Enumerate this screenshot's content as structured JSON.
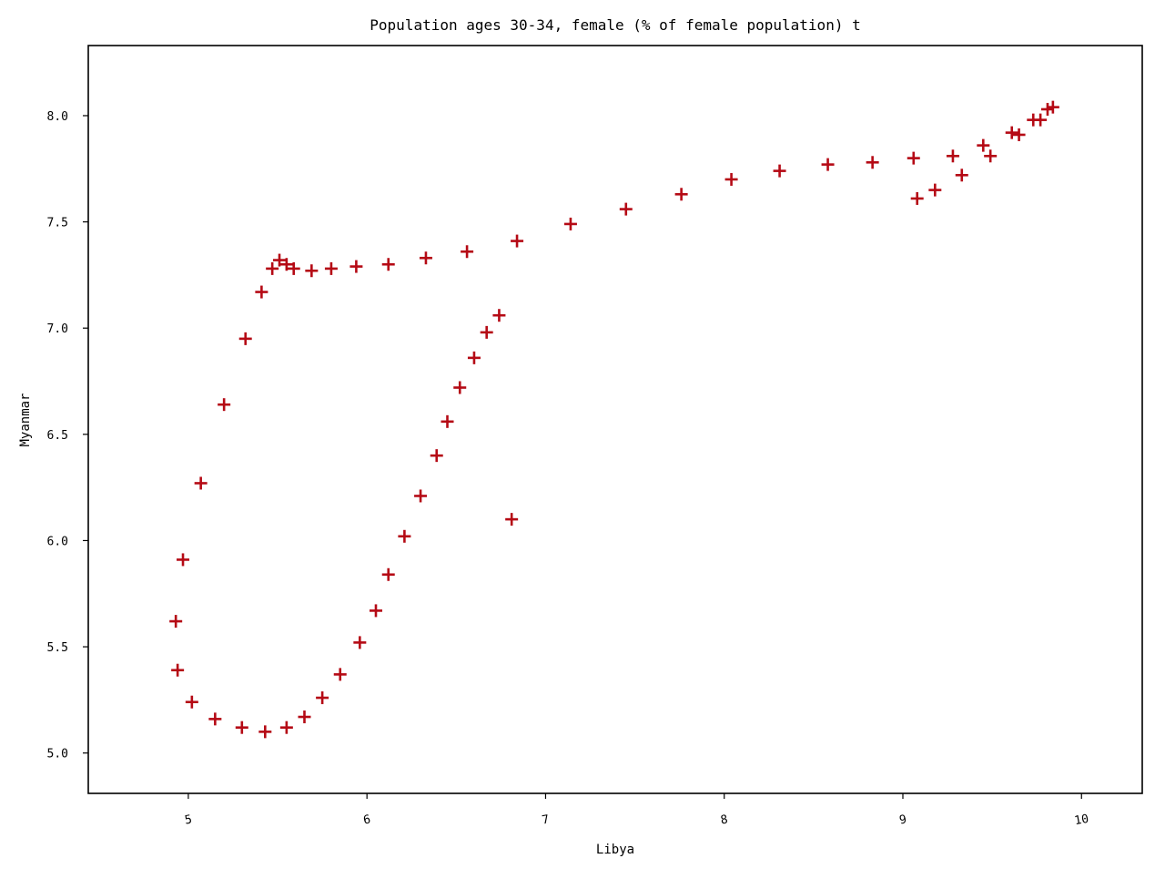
{
  "chart_data": {
    "type": "scatter",
    "title": "Population ages 30-34, female (% of female population) t",
    "xlabel": "Libya",
    "ylabel": "Myanmar",
    "xlim": [
      4.44,
      10.34
    ],
    "ylim": [
      4.81,
      8.33
    ],
    "xticks": [
      5,
      6,
      7,
      8,
      9,
      10
    ],
    "xtick_labels": [
      "5",
      "6",
      "7",
      "8",
      "9",
      "10"
    ],
    "yticks": [
      5.0,
      5.5,
      6.0,
      6.5,
      7.0,
      7.5,
      8.0
    ],
    "ytick_labels": [
      "5.0",
      "5.5",
      "6.0",
      "6.5",
      "7.0",
      "7.5",
      "8.0"
    ],
    "grid": false,
    "marker": "plus",
    "color": "#b50a15",
    "points": [
      {
        "x": 4.93,
        "y": 5.62
      },
      {
        "x": 4.94,
        "y": 5.39
      },
      {
        "x": 4.97,
        "y": 5.91
      },
      {
        "x": 5.02,
        "y": 5.24
      },
      {
        "x": 5.07,
        "y": 6.27
      },
      {
        "x": 5.15,
        "y": 5.16
      },
      {
        "x": 5.2,
        "y": 6.64
      },
      {
        "x": 5.3,
        "y": 5.12
      },
      {
        "x": 5.32,
        "y": 6.95
      },
      {
        "x": 5.41,
        "y": 7.17
      },
      {
        "x": 5.43,
        "y": 5.1
      },
      {
        "x": 5.47,
        "y": 7.28
      },
      {
        "x": 5.51,
        "y": 7.32
      },
      {
        "x": 5.55,
        "y": 5.12
      },
      {
        "x": 5.55,
        "y": 7.3
      },
      {
        "x": 5.59,
        "y": 7.28
      },
      {
        "x": 5.65,
        "y": 5.17
      },
      {
        "x": 5.69,
        "y": 7.27
      },
      {
        "x": 5.75,
        "y": 5.26
      },
      {
        "x": 5.8,
        "y": 7.28
      },
      {
        "x": 5.85,
        "y": 5.37
      },
      {
        "x": 5.94,
        "y": 7.29
      },
      {
        "x": 5.96,
        "y": 5.52
      },
      {
        "x": 6.05,
        "y": 5.67
      },
      {
        "x": 6.12,
        "y": 5.84
      },
      {
        "x": 6.12,
        "y": 7.3
      },
      {
        "x": 6.21,
        "y": 6.02
      },
      {
        "x": 6.3,
        "y": 6.21
      },
      {
        "x": 6.33,
        "y": 7.33
      },
      {
        "x": 6.39,
        "y": 6.4
      },
      {
        "x": 6.45,
        "y": 6.56
      },
      {
        "x": 6.52,
        "y": 6.72
      },
      {
        "x": 6.56,
        "y": 7.36
      },
      {
        "x": 6.6,
        "y": 6.86
      },
      {
        "x": 6.67,
        "y": 6.98
      },
      {
        "x": 6.74,
        "y": 7.06
      },
      {
        "x": 6.81,
        "y": 6.1
      },
      {
        "x": 6.84,
        "y": 7.41
      },
      {
        "x": 7.14,
        "y": 7.49
      },
      {
        "x": 7.45,
        "y": 7.56
      },
      {
        "x": 7.76,
        "y": 7.63
      },
      {
        "x": 8.04,
        "y": 7.7
      },
      {
        "x": 8.31,
        "y": 7.74
      },
      {
        "x": 8.58,
        "y": 7.77
      },
      {
        "x": 8.83,
        "y": 7.78
      },
      {
        "x": 9.06,
        "y": 7.8
      },
      {
        "x": 9.08,
        "y": 7.61
      },
      {
        "x": 9.18,
        "y": 7.65
      },
      {
        "x": 9.28,
        "y": 7.81
      },
      {
        "x": 9.33,
        "y": 7.72
      },
      {
        "x": 9.45,
        "y": 7.86
      },
      {
        "x": 9.49,
        "y": 7.81
      },
      {
        "x": 9.61,
        "y": 7.92
      },
      {
        "x": 9.65,
        "y": 7.91
      },
      {
        "x": 9.73,
        "y": 7.98
      },
      {
        "x": 9.77,
        "y": 7.98
      },
      {
        "x": 9.81,
        "y": 8.03
      },
      {
        "x": 9.84,
        "y": 8.04
      }
    ]
  }
}
